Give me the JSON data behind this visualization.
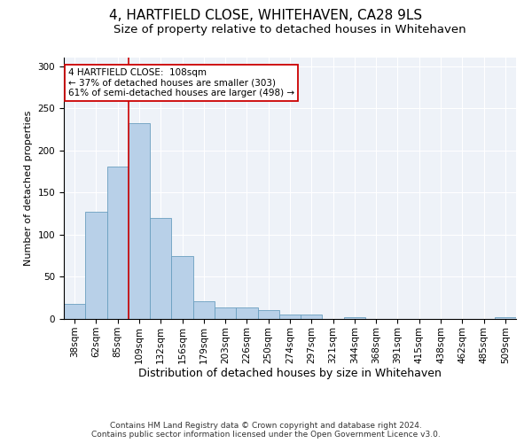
{
  "title": "4, HARTFIELD CLOSE, WHITEHAVEN, CA28 9LS",
  "subtitle": "Size of property relative to detached houses in Whitehaven",
  "xlabel": "Distribution of detached houses by size in Whitehaven",
  "ylabel": "Number of detached properties",
  "categories": [
    "38sqm",
    "62sqm",
    "85sqm",
    "109sqm",
    "132sqm",
    "156sqm",
    "179sqm",
    "203sqm",
    "226sqm",
    "250sqm",
    "274sqm",
    "297sqm",
    "321sqm",
    "344sqm",
    "368sqm",
    "391sqm",
    "415sqm",
    "438sqm",
    "462sqm",
    "485sqm",
    "509sqm"
  ],
  "values": [
    18,
    127,
    181,
    232,
    120,
    75,
    21,
    14,
    14,
    10,
    5,
    5,
    0,
    2,
    0,
    0,
    0,
    0,
    0,
    0,
    2
  ],
  "bar_color": "#b8d0e8",
  "bar_edgecolor": "#6a9fc0",
  "vline_x": 2.5,
  "vline_color": "#cc0000",
  "annotation_text": "4 HARTFIELD CLOSE:  108sqm\n← 37% of detached houses are smaller (303)\n61% of semi-detached houses are larger (498) →",
  "annotation_box_color": "#ffffff",
  "annotation_box_edgecolor": "#cc0000",
  "ylim": [
    0,
    310
  ],
  "yticks": [
    0,
    50,
    100,
    150,
    200,
    250,
    300
  ],
  "footnote_line1": "Contains HM Land Registry data © Crown copyright and database right 2024.",
  "footnote_line2": "Contains public sector information licensed under the Open Government Licence v3.0.",
  "title_fontsize": 11,
  "subtitle_fontsize": 9.5,
  "xlabel_fontsize": 9,
  "ylabel_fontsize": 8,
  "footnote_fontsize": 6.5,
  "tick_fontsize": 7.5,
  "annotation_fontsize": 7.5,
  "background_color": "#eef2f8"
}
